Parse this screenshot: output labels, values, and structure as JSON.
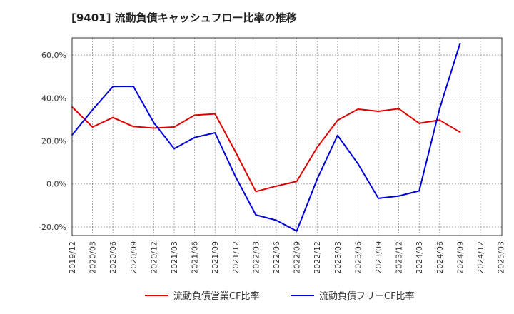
{
  "chart_data": {
    "type": "line",
    "title": "[9401]  流動負債キャッシュフロー比率の推移",
    "x_ticks": [
      "2019/12",
      "2020/03",
      "2020/06",
      "2020/09",
      "2020/12",
      "2021/03",
      "2021/06",
      "2021/09",
      "2021/12",
      "2022/03",
      "2022/06",
      "2022/09",
      "2022/12",
      "2023/03",
      "2023/06",
      "2023/09",
      "2023/12",
      "2024/03",
      "2024/06",
      "2024/09",
      "2024/12",
      "2025/03"
    ],
    "y_ticks": [
      60,
      40,
      20,
      0,
      -20
    ],
    "y_tick_labels": [
      "60.0%",
      "40.0%",
      "20.0%",
      "0.0%",
      "-20.0%"
    ],
    "ylim": [
      -24,
      68
    ],
    "grid": true,
    "legend_position": "bottom",
    "series": [
      {
        "name": "流動負債営業CF比率",
        "color": "#e00000",
        "x": [
          "2019/12",
          "2020/03",
          "2020/06",
          "2020/09",
          "2020/12",
          "2021/03",
          "2021/06",
          "2021/09",
          "2021/12",
          "2022/03",
          "2022/06",
          "2022/09",
          "2022/12",
          "2023/03",
          "2023/06",
          "2023/09",
          "2023/12",
          "2024/03",
          "2024/06",
          "2024/09"
        ],
        "values": [
          35.8,
          26.5,
          30.9,
          26.7,
          26.0,
          26.5,
          32.0,
          32.6,
          15.0,
          -3.5,
          -1.0,
          1.2,
          17.0,
          29.6,
          34.8,
          33.8,
          35.0,
          28.2,
          29.7,
          24.1
        ]
      },
      {
        "name": "流動負債フリーCF比率",
        "color": "#0000dd",
        "x": [
          "2019/12",
          "2020/03",
          "2020/06",
          "2020/09",
          "2020/12",
          "2021/03",
          "2021/06",
          "2021/09",
          "2021/12",
          "2022/03",
          "2022/06",
          "2022/09",
          "2022/12",
          "2023/03",
          "2023/06",
          "2023/09",
          "2023/12",
          "2024/03",
          "2024/06",
          "2024/09"
        ],
        "values": [
          22.8,
          34.5,
          45.3,
          45.4,
          28.5,
          16.4,
          21.6,
          23.8,
          3.5,
          -14.4,
          -16.9,
          -21.9,
          2.2,
          22.6,
          9.4,
          -6.7,
          -5.6,
          -3.2,
          35.0,
          65.4
        ]
      }
    ]
  }
}
